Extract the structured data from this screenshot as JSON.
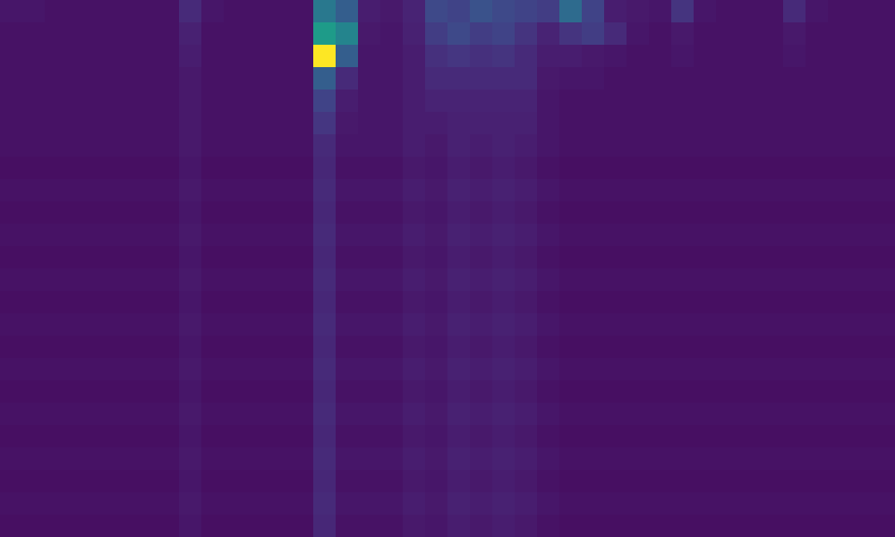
{
  "chart_data": {
    "type": "heatmap",
    "tick_labels": false,
    "color_range": [
      0,
      1
    ],
    "cells": [
      [
        0.06,
        0.06,
        0.05,
        0.05,
        0.05,
        0.05,
        0.05,
        0.05,
        0.12,
        0.06,
        0.05,
        0.05,
        0.05,
        0.05,
        0.4,
        0.3,
        0.08,
        0.07,
        0.1,
        0.22,
        0.2,
        0.25,
        0.22,
        0.2,
        0.18,
        0.35,
        0.2,
        0.08,
        0.07,
        0.06,
        0.15,
        0.06,
        0.05,
        0.05,
        0.05,
        0.12,
        0.06,
        0.05,
        0.05,
        0.05
      ],
      [
        0.05,
        0.05,
        0.05,
        0.05,
        0.05,
        0.05,
        0.05,
        0.05,
        0.09,
        0.05,
        0.05,
        0.05,
        0.05,
        0.05,
        0.55,
        0.45,
        0.07,
        0.06,
        0.09,
        0.18,
        0.22,
        0.18,
        0.2,
        0.15,
        0.1,
        0.15,
        0.18,
        0.12,
        0.06,
        0.05,
        0.07,
        0.05,
        0.05,
        0.05,
        0.05,
        0.07,
        0.05,
        0.05,
        0.05,
        0.05
      ],
      [
        0.05,
        0.05,
        0.05,
        0.05,
        0.05,
        0.05,
        0.05,
        0.05,
        0.08,
        0.05,
        0.05,
        0.05,
        0.05,
        0.05,
        1.0,
        0.3,
        0.06,
        0.06,
        0.08,
        0.14,
        0.16,
        0.14,
        0.15,
        0.12,
        0.08,
        0.08,
        0.07,
        0.06,
        0.05,
        0.05,
        0.06,
        0.05,
        0.05,
        0.05,
        0.05,
        0.06,
        0.05,
        0.05,
        0.05,
        0.05
      ],
      [
        0.05,
        0.05,
        0.05,
        0.05,
        0.05,
        0.05,
        0.05,
        0.05,
        0.07,
        0.05,
        0.05,
        0.05,
        0.05,
        0.05,
        0.3,
        0.12,
        0.06,
        0.06,
        0.08,
        0.12,
        0.12,
        0.12,
        0.12,
        0.12,
        0.07,
        0.06,
        0.06,
        0.05,
        0.05,
        0.05,
        0.05,
        0.05,
        0.05,
        0.05,
        0.05,
        0.05,
        0.05,
        0.05,
        0.05,
        0.05
      ],
      [
        0.05,
        0.05,
        0.05,
        0.05,
        0.05,
        0.05,
        0.05,
        0.05,
        0.07,
        0.05,
        0.05,
        0.05,
        0.05,
        0.05,
        0.2,
        0.08,
        0.06,
        0.06,
        0.08,
        0.1,
        0.1,
        0.1,
        0.1,
        0.1,
        0.06,
        0.05,
        0.05,
        0.05,
        0.05,
        0.05,
        0.05,
        0.05,
        0.05,
        0.05,
        0.05,
        0.05,
        0.05,
        0.05,
        0.05,
        0.05
      ],
      [
        0.05,
        0.05,
        0.05,
        0.05,
        0.05,
        0.05,
        0.05,
        0.05,
        0.07,
        0.05,
        0.05,
        0.05,
        0.05,
        0.05,
        0.16,
        0.07,
        0.06,
        0.06,
        0.08,
        0.08,
        0.09,
        0.09,
        0.09,
        0.09,
        0.06,
        0.05,
        0.05,
        0.05,
        0.05,
        0.05,
        0.05,
        0.05,
        0.05,
        0.05,
        0.05,
        0.05,
        0.05,
        0.05,
        0.05,
        0.05
      ],
      [
        0.05,
        0.05,
        0.05,
        0.05,
        0.05,
        0.05,
        0.05,
        0.05,
        0.07,
        0.05,
        0.05,
        0.05,
        0.05,
        0.05,
        0.12,
        0.06,
        0.06,
        0.06,
        0.08,
        0.07,
        0.09,
        0.08,
        0.09,
        0.08,
        0.06,
        0.05,
        0.05,
        0.05,
        0.05,
        0.05,
        0.05,
        0.05,
        0.05,
        0.05,
        0.05,
        0.05,
        0.05,
        0.05,
        0.05,
        0.05
      ],
      [
        0.04,
        0.04,
        0.04,
        0.04,
        0.04,
        0.04,
        0.04,
        0.04,
        0.06,
        0.04,
        0.04,
        0.04,
        0.04,
        0.04,
        0.11,
        0.05,
        0.05,
        0.05,
        0.07,
        0.06,
        0.08,
        0.07,
        0.08,
        0.07,
        0.05,
        0.04,
        0.04,
        0.04,
        0.04,
        0.04,
        0.04,
        0.04,
        0.04,
        0.04,
        0.04,
        0.04,
        0.04,
        0.04,
        0.04,
        0.04
      ],
      [
        0.05,
        0.05,
        0.05,
        0.05,
        0.05,
        0.05,
        0.05,
        0.05,
        0.07,
        0.05,
        0.05,
        0.05,
        0.05,
        0.05,
        0.12,
        0.06,
        0.06,
        0.06,
        0.08,
        0.07,
        0.09,
        0.08,
        0.09,
        0.08,
        0.06,
        0.05,
        0.05,
        0.05,
        0.05,
        0.05,
        0.05,
        0.05,
        0.05,
        0.05,
        0.05,
        0.05,
        0.05,
        0.05,
        0.05,
        0.05
      ],
      [
        0.04,
        0.04,
        0.04,
        0.04,
        0.04,
        0.04,
        0.04,
        0.04,
        0.06,
        0.04,
        0.04,
        0.04,
        0.04,
        0.04,
        0.11,
        0.05,
        0.05,
        0.05,
        0.07,
        0.06,
        0.08,
        0.07,
        0.08,
        0.07,
        0.05,
        0.04,
        0.04,
        0.04,
        0.04,
        0.04,
        0.04,
        0.04,
        0.04,
        0.04,
        0.04,
        0.04,
        0.04,
        0.04,
        0.04,
        0.04
      ],
      [
        0.05,
        0.05,
        0.05,
        0.05,
        0.05,
        0.05,
        0.05,
        0.05,
        0.07,
        0.05,
        0.05,
        0.05,
        0.05,
        0.05,
        0.12,
        0.06,
        0.06,
        0.06,
        0.08,
        0.07,
        0.09,
        0.08,
        0.09,
        0.08,
        0.06,
        0.05,
        0.05,
        0.05,
        0.05,
        0.05,
        0.05,
        0.05,
        0.05,
        0.05,
        0.05,
        0.05,
        0.05,
        0.05,
        0.05,
        0.05
      ],
      [
        0.04,
        0.04,
        0.04,
        0.04,
        0.04,
        0.04,
        0.04,
        0.04,
        0.06,
        0.04,
        0.04,
        0.04,
        0.04,
        0.04,
        0.11,
        0.05,
        0.05,
        0.05,
        0.07,
        0.06,
        0.08,
        0.07,
        0.08,
        0.07,
        0.05,
        0.04,
        0.04,
        0.04,
        0.04,
        0.04,
        0.04,
        0.04,
        0.04,
        0.04,
        0.04,
        0.04,
        0.04,
        0.04,
        0.04,
        0.04
      ],
      [
        0.05,
        0.05,
        0.05,
        0.05,
        0.05,
        0.05,
        0.05,
        0.05,
        0.07,
        0.05,
        0.05,
        0.05,
        0.05,
        0.05,
        0.12,
        0.06,
        0.06,
        0.06,
        0.08,
        0.07,
        0.09,
        0.08,
        0.09,
        0.08,
        0.06,
        0.05,
        0.05,
        0.05,
        0.05,
        0.05,
        0.05,
        0.05,
        0.05,
        0.05,
        0.05,
        0.05,
        0.05,
        0.05,
        0.05,
        0.05
      ],
      [
        0.04,
        0.04,
        0.04,
        0.04,
        0.04,
        0.04,
        0.04,
        0.04,
        0.06,
        0.04,
        0.04,
        0.04,
        0.04,
        0.04,
        0.11,
        0.05,
        0.05,
        0.05,
        0.07,
        0.06,
        0.08,
        0.07,
        0.08,
        0.07,
        0.05,
        0.04,
        0.04,
        0.04,
        0.04,
        0.04,
        0.04,
        0.04,
        0.04,
        0.04,
        0.04,
        0.04,
        0.04,
        0.04,
        0.04,
        0.04
      ],
      [
        0.05,
        0.05,
        0.05,
        0.05,
        0.05,
        0.05,
        0.05,
        0.05,
        0.07,
        0.05,
        0.05,
        0.05,
        0.05,
        0.05,
        0.12,
        0.06,
        0.06,
        0.06,
        0.08,
        0.07,
        0.09,
        0.08,
        0.09,
        0.08,
        0.06,
        0.05,
        0.05,
        0.05,
        0.05,
        0.05,
        0.05,
        0.05,
        0.05,
        0.05,
        0.05,
        0.05,
        0.05,
        0.05,
        0.05,
        0.05
      ],
      [
        0.04,
        0.04,
        0.04,
        0.04,
        0.04,
        0.04,
        0.04,
        0.04,
        0.06,
        0.04,
        0.04,
        0.04,
        0.04,
        0.04,
        0.11,
        0.05,
        0.05,
        0.05,
        0.07,
        0.06,
        0.08,
        0.07,
        0.08,
        0.07,
        0.05,
        0.04,
        0.04,
        0.04,
        0.04,
        0.04,
        0.04,
        0.04,
        0.04,
        0.04,
        0.04,
        0.04,
        0.04,
        0.04,
        0.04,
        0.04
      ],
      [
        0.05,
        0.05,
        0.05,
        0.05,
        0.05,
        0.05,
        0.05,
        0.05,
        0.07,
        0.05,
        0.05,
        0.05,
        0.05,
        0.05,
        0.12,
        0.06,
        0.06,
        0.06,
        0.08,
        0.07,
        0.09,
        0.08,
        0.09,
        0.08,
        0.06,
        0.05,
        0.05,
        0.05,
        0.05,
        0.05,
        0.05,
        0.05,
        0.05,
        0.05,
        0.05,
        0.05,
        0.05,
        0.05,
        0.05,
        0.05
      ],
      [
        0.04,
        0.04,
        0.04,
        0.04,
        0.04,
        0.04,
        0.04,
        0.04,
        0.06,
        0.04,
        0.04,
        0.04,
        0.04,
        0.04,
        0.11,
        0.05,
        0.05,
        0.05,
        0.07,
        0.06,
        0.08,
        0.07,
        0.08,
        0.07,
        0.05,
        0.04,
        0.04,
        0.04,
        0.04,
        0.04,
        0.04,
        0.04,
        0.04,
        0.04,
        0.04,
        0.04,
        0.04,
        0.04,
        0.04,
        0.04
      ],
      [
        0.05,
        0.05,
        0.05,
        0.05,
        0.05,
        0.05,
        0.05,
        0.05,
        0.07,
        0.05,
        0.05,
        0.05,
        0.05,
        0.05,
        0.12,
        0.06,
        0.06,
        0.06,
        0.08,
        0.07,
        0.09,
        0.08,
        0.09,
        0.08,
        0.06,
        0.05,
        0.05,
        0.05,
        0.05,
        0.05,
        0.05,
        0.05,
        0.05,
        0.05,
        0.05,
        0.05,
        0.05,
        0.05,
        0.05,
        0.05
      ],
      [
        0.04,
        0.04,
        0.04,
        0.04,
        0.04,
        0.04,
        0.04,
        0.04,
        0.06,
        0.04,
        0.04,
        0.04,
        0.04,
        0.04,
        0.11,
        0.05,
        0.05,
        0.05,
        0.07,
        0.06,
        0.08,
        0.07,
        0.08,
        0.07,
        0.05,
        0.04,
        0.04,
        0.04,
        0.04,
        0.04,
        0.04,
        0.04,
        0.04,
        0.04,
        0.04,
        0.04,
        0.04,
        0.04,
        0.04,
        0.04
      ],
      [
        0.05,
        0.05,
        0.05,
        0.05,
        0.05,
        0.05,
        0.05,
        0.05,
        0.07,
        0.05,
        0.05,
        0.05,
        0.05,
        0.05,
        0.12,
        0.06,
        0.06,
        0.06,
        0.08,
        0.07,
        0.09,
        0.08,
        0.09,
        0.08,
        0.06,
        0.05,
        0.05,
        0.05,
        0.05,
        0.05,
        0.05,
        0.05,
        0.05,
        0.05,
        0.05,
        0.05,
        0.05,
        0.05,
        0.05,
        0.05
      ],
      [
        0.04,
        0.04,
        0.04,
        0.04,
        0.04,
        0.04,
        0.04,
        0.04,
        0.06,
        0.04,
        0.04,
        0.04,
        0.04,
        0.04,
        0.11,
        0.05,
        0.05,
        0.05,
        0.07,
        0.06,
        0.08,
        0.07,
        0.08,
        0.07,
        0.05,
        0.04,
        0.04,
        0.04,
        0.04,
        0.04,
        0.04,
        0.04,
        0.04,
        0.04,
        0.04,
        0.04,
        0.04,
        0.04,
        0.04,
        0.04
      ],
      [
        0.05,
        0.05,
        0.05,
        0.05,
        0.05,
        0.05,
        0.05,
        0.05,
        0.07,
        0.05,
        0.05,
        0.05,
        0.05,
        0.05,
        0.12,
        0.06,
        0.06,
        0.06,
        0.08,
        0.07,
        0.09,
        0.08,
        0.09,
        0.08,
        0.06,
        0.05,
        0.05,
        0.05,
        0.05,
        0.05,
        0.05,
        0.05,
        0.05,
        0.05,
        0.05,
        0.05,
        0.05,
        0.05,
        0.05,
        0.05
      ],
      [
        0.04,
        0.04,
        0.04,
        0.04,
        0.04,
        0.04,
        0.04,
        0.04,
        0.06,
        0.04,
        0.04,
        0.04,
        0.04,
        0.04,
        0.11,
        0.05,
        0.05,
        0.05,
        0.07,
        0.06,
        0.08,
        0.07,
        0.08,
        0.07,
        0.05,
        0.04,
        0.04,
        0.04,
        0.04,
        0.04,
        0.04,
        0.04,
        0.04,
        0.04,
        0.04,
        0.04,
        0.04,
        0.04,
        0.04,
        0.04
      ]
    ]
  }
}
